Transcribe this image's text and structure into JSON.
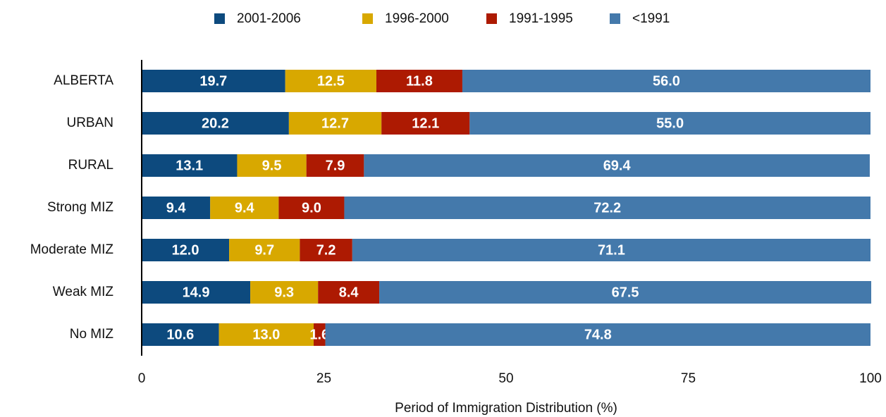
{
  "chart_data": {
    "type": "stacked_barh",
    "xlabel": "Period of Immigration Distribution (%)",
    "categories": [
      "ALBERTA",
      "URBAN",
      "RURAL",
      "Strong MIZ",
      "Moderate MIZ",
      "Weak MIZ",
      "No MIZ"
    ],
    "series": [
      {
        "name": "2001-2006",
        "color": "#0d4a7e",
        "values": [
          19.7,
          20.2,
          13.1,
          9.4,
          12.0,
          14.9,
          10.6
        ],
        "value_labels": [
          "19.7",
          "20.2",
          "13.1",
          "9.4",
          "12.0",
          "14.9",
          "10.6"
        ]
      },
      {
        "name": "1996-2000",
        "color": "#d8a800",
        "values": [
          12.5,
          12.7,
          9.5,
          9.4,
          9.7,
          9.3,
          13.0
        ],
        "value_labels": [
          "12.5",
          "12.7",
          "9.5",
          "9.4",
          "9.7",
          "9.3",
          "13.0"
        ]
      },
      {
        "name": "1991-1995",
        "color": "#ad1a02",
        "values": [
          11.8,
          12.1,
          7.9,
          9.0,
          7.2,
          8.4,
          1.6
        ],
        "value_labels": [
          "11.8",
          "12.1",
          "7.9",
          "9.0",
          "7.2",
          "8.4",
          "1.6"
        ]
      },
      {
        "name": "<1991",
        "color": "#4479ab",
        "values": [
          56.0,
          55.0,
          69.4,
          72.2,
          71.1,
          67.5,
          74.8
        ],
        "value_labels": [
          "56.0",
          "55.0",
          "69.4",
          "72.2",
          "71.1",
          "67.5",
          "74.8"
        ]
      }
    ],
    "xlim": [
      0,
      100
    ],
    "xticks": [
      0,
      25,
      50,
      75,
      100
    ],
    "grid": false,
    "legend": "top"
  }
}
